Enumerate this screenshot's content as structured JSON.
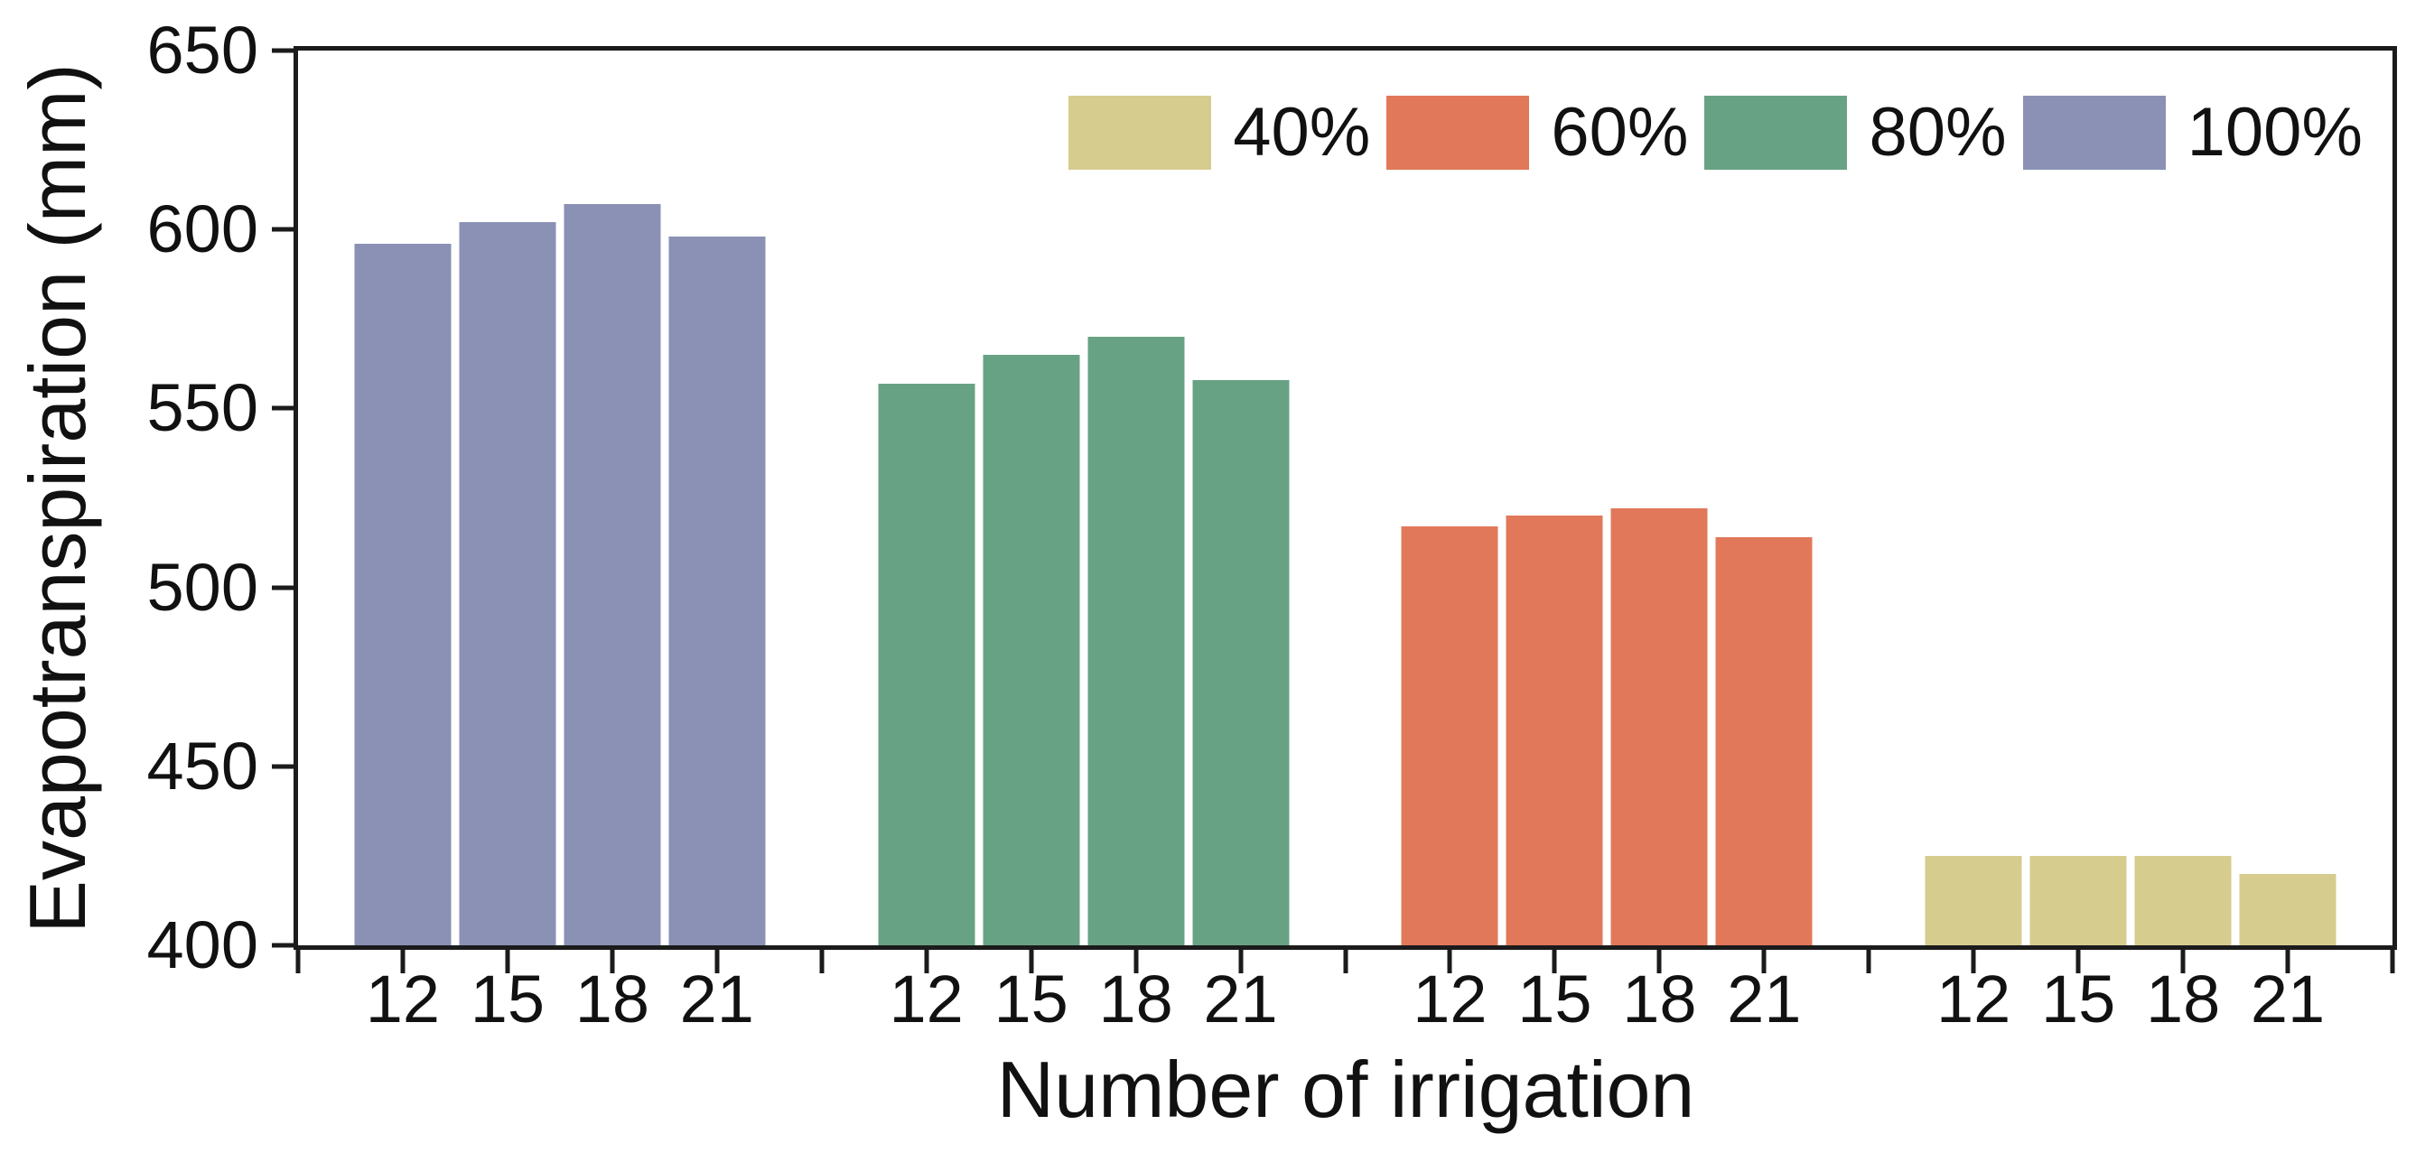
{
  "chart_data": {
    "type": "bar",
    "title": "",
    "xlabel": "Number of irrigation",
    "ylabel": "Evapotranspiration (mm)",
    "ylim": [
      400,
      650
    ],
    "yticks": [
      650,
      600,
      550,
      500,
      450,
      400
    ],
    "categories": [
      "12",
      "15",
      "18",
      "21"
    ],
    "series": [
      {
        "name": "100%",
        "color": "#8a91b5",
        "values": [
          596,
          602,
          607,
          598
        ]
      },
      {
        "name": "80%",
        "color": "#68a284",
        "values": [
          557,
          565,
          570,
          558
        ]
      },
      {
        "name": "60%",
        "color": "#e1785a",
        "values": [
          517,
          520,
          522,
          514
        ]
      },
      {
        "name": "40%",
        "color": "#d6cc8e",
        "values": [
          425,
          425,
          425,
          420
        ]
      }
    ],
    "legend": [
      {
        "label": "40%",
        "color": "#d6cc8e"
      },
      {
        "label": "60%",
        "color": "#e1785a"
      },
      {
        "label": "80%",
        "color": "#68a284"
      },
      {
        "label": "100%",
        "color": "#8a91b5"
      }
    ],
    "legend_position": "top-right",
    "grid": false,
    "axis_color": "#1b1b1b",
    "background_color": "#ffffff"
  }
}
